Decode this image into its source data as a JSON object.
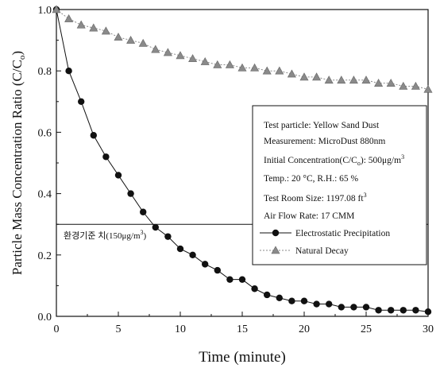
{
  "chart_data": {
    "type": "line",
    "xlabel": "Time (minute)",
    "ylabel": "Particle Mass Concentration Ratio (C/C",
    "ylabel_tail": "o",
    "ylabel_close": ")",
    "xlim": [
      0,
      30
    ],
    "ylim": [
      0.0,
      1.0
    ],
    "x_ticks": [
      "0",
      "5",
      "10",
      "15",
      "20",
      "25",
      "30"
    ],
    "x_tick_values": [
      0,
      5,
      10,
      15,
      20,
      25,
      30
    ],
    "y_ticks": [
      "0.0",
      "0.2",
      "0.4",
      "0.6",
      "0.8",
      "1.0"
    ],
    "y_tick_values": [
      0.0,
      0.2,
      0.4,
      0.6,
      0.8,
      1.0
    ],
    "grid": false,
    "reference_line": {
      "y": 0.3,
      "label": "환경기준 치(150μg/m",
      "label_sup": "3",
      "label_close": ")"
    },
    "series": [
      {
        "name": "Electrostatic Precipitation",
        "marker": "circle",
        "color": "#111111",
        "x": [
          0,
          1,
          2,
          3,
          4,
          5,
          6,
          7,
          8,
          9,
          10,
          11,
          12,
          13,
          14,
          15,
          16,
          17,
          18,
          19,
          20,
          21,
          22,
          23,
          24,
          25,
          26,
          27,
          28,
          29,
          30
        ],
        "values": [
          1.0,
          0.8,
          0.7,
          0.59,
          0.52,
          0.46,
          0.4,
          0.34,
          0.29,
          0.26,
          0.22,
          0.2,
          0.17,
          0.15,
          0.12,
          0.12,
          0.09,
          0.07,
          0.06,
          0.05,
          0.05,
          0.04,
          0.04,
          0.03,
          0.03,
          0.03,
          0.02,
          0.02,
          0.02,
          0.02,
          0.015
        ]
      },
      {
        "name": "Natural Decay",
        "marker": "triangle",
        "color": "#8a8a8a",
        "x": [
          0,
          1,
          2,
          3,
          4,
          5,
          6,
          7,
          8,
          9,
          10,
          11,
          12,
          13,
          14,
          15,
          16,
          17,
          18,
          19,
          20,
          21,
          22,
          23,
          24,
          25,
          26,
          27,
          28,
          29,
          30
        ],
        "values": [
          1.0,
          0.97,
          0.95,
          0.94,
          0.93,
          0.91,
          0.9,
          0.89,
          0.87,
          0.86,
          0.85,
          0.84,
          0.83,
          0.82,
          0.82,
          0.81,
          0.81,
          0.8,
          0.8,
          0.79,
          0.78,
          0.78,
          0.77,
          0.77,
          0.77,
          0.77,
          0.76,
          0.76,
          0.75,
          0.75,
          0.74
        ]
      }
    ],
    "info_box": {
      "test_particle": "Test particle: Yellow Sand Dust",
      "measurement": "Measurement: MicroDust 880nm",
      "initial_conc": "Initial Concentration(C/C",
      "initial_conc_sub": "o",
      "initial_conc_tail": "): 500μg/m",
      "initial_conc_sup": "3",
      "temp": "Temp.: 20 °C, R.H.: 65 %",
      "room_size": "Test Room Size: 1197.08 ft",
      "room_size_sup": "3",
      "air_flow": "Air Flow Rate: 17 CMM",
      "legend_ep": "Electrostatic Precipitation",
      "legend_nd": "Natural Decay"
    }
  }
}
